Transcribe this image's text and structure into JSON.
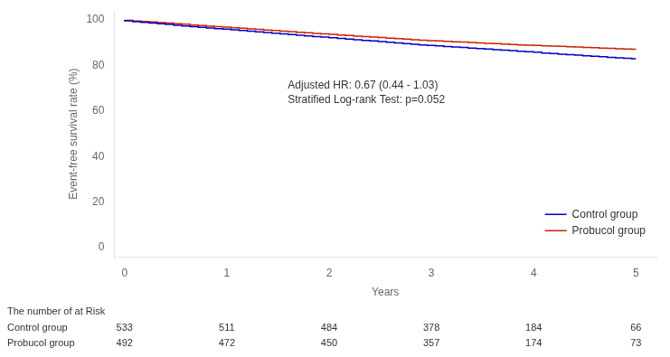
{
  "chart_data": {
    "type": "step",
    "ylabel": "Event-free survival rate (%)",
    "xlabel": "Years",
    "xlim": [
      -0.1,
      5.2
    ],
    "ylim": [
      -4,
      104
    ],
    "xticks": [
      0,
      1,
      2,
      3,
      4,
      5
    ],
    "yticks": [
      0,
      20,
      40,
      60,
      80,
      100
    ],
    "grid": false,
    "legend": "lower right",
    "annotations": [
      "Adjusted HR: 0.67 (0.44 - 1.03)",
      "Stratified Log-rank Test: p=0.052"
    ],
    "x": [
      0.0,
      0.08,
      0.16,
      0.24,
      0.32,
      0.4,
      0.48,
      0.56,
      0.64,
      0.72,
      0.8,
      0.88,
      0.96,
      1.04,
      1.12,
      1.2,
      1.28,
      1.36,
      1.44,
      1.52,
      1.6,
      1.68,
      1.76,
      1.84,
      1.92,
      2.0,
      2.08,
      2.16,
      2.24,
      2.32,
      2.4,
      2.48,
      2.56,
      2.64,
      2.72,
      2.8,
      2.88,
      2.96,
      3.04,
      3.12,
      3.2,
      3.28,
      3.36,
      3.44,
      3.52,
      3.6,
      3.68,
      3.76,
      3.84,
      3.92,
      4.0,
      4.08,
      4.16,
      4.24,
      4.32,
      4.4,
      4.48,
      4.56,
      4.64,
      4.72,
      4.8,
      4.88,
      4.96,
      5.0
    ],
    "series": [
      {
        "name": "Control group",
        "color": "#0000CC",
        "values": [
          100.0,
          99.6,
          99.2,
          98.9,
          98.6,
          98.3,
          98.0,
          97.7,
          97.4,
          97.1,
          96.8,
          96.5,
          96.2,
          96.0,
          95.7,
          95.4,
          95.1,
          94.8,
          94.5,
          94.2,
          93.9,
          93.6,
          93.3,
          93.0,
          92.7,
          92.5,
          92.2,
          91.9,
          91.6,
          91.3,
          91.0,
          90.8,
          90.5,
          90.2,
          89.9,
          89.6,
          89.3,
          89.0,
          88.8,
          88.6,
          88.3,
          88.1,
          87.9,
          87.6,
          87.4,
          87.2,
          86.9,
          86.7,
          86.5,
          86.2,
          86.0,
          85.8,
          85.5,
          85.3,
          85.0,
          84.8,
          84.6,
          84.3,
          84.1,
          83.9,
          83.6,
          83.4,
          83.2,
          83.0
        ]
      },
      {
        "name": "Probucol group",
        "color": "#CC2200",
        "values": [
          100.0,
          99.8,
          99.5,
          99.3,
          99.1,
          98.8,
          98.6,
          98.3,
          98.1,
          97.8,
          97.6,
          97.3,
          97.1,
          96.9,
          96.6,
          96.4,
          96.1,
          95.9,
          95.6,
          95.4,
          95.1,
          94.9,
          94.6,
          94.4,
          94.1,
          93.9,
          93.7,
          93.4,
          93.2,
          92.9,
          92.7,
          92.5,
          92.3,
          92.0,
          91.8,
          91.6,
          91.3,
          91.1,
          90.9,
          90.8,
          90.6,
          90.4,
          90.3,
          90.1,
          89.9,
          89.7,
          89.6,
          89.4,
          89.2,
          89.0,
          88.9,
          88.8,
          88.6,
          88.5,
          88.4,
          88.2,
          88.1,
          87.9,
          87.8,
          87.6,
          87.5,
          87.3,
          87.2,
          87.1
        ]
      }
    ],
    "at_risk": {
      "title": "The number of at Risk",
      "rows": [
        {
          "name": "Control group",
          "values": [
            533,
            511,
            484,
            378,
            184,
            66
          ]
        },
        {
          "name": "Probucol group",
          "values": [
            492,
            472,
            450,
            357,
            174,
            73
          ]
        }
      ]
    }
  }
}
